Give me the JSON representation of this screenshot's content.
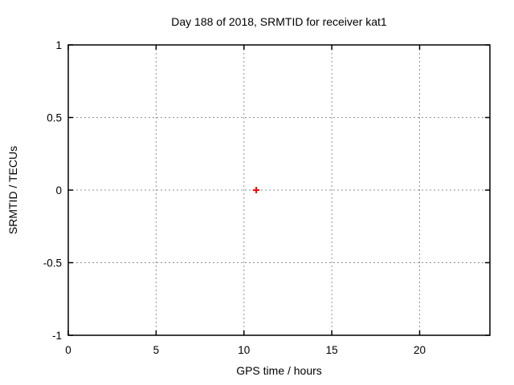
{
  "chart_data": {
    "type": "scatter",
    "title": "Day 188 of 2018, SRMTID for receiver kat1",
    "xlabel": "GPS time / hours",
    "ylabel": "SRMTID / TECUs",
    "xlim": [
      0,
      24
    ],
    "ylim": [
      -1,
      1
    ],
    "xticks": [
      0,
      5,
      10,
      15,
      20
    ],
    "yticks": [
      -1,
      -0.5,
      0,
      0.5,
      1
    ],
    "grid": true,
    "legend": "none",
    "series": [
      {
        "name": "SRMTID",
        "marker": "plus",
        "color": "#ff0000",
        "points": [
          {
            "x": 10.7,
            "y": 0.0
          }
        ]
      }
    ]
  },
  "colors": {
    "background": "#ffffff",
    "frame": "#000000",
    "grid": "#909090",
    "text": "#000000"
  }
}
